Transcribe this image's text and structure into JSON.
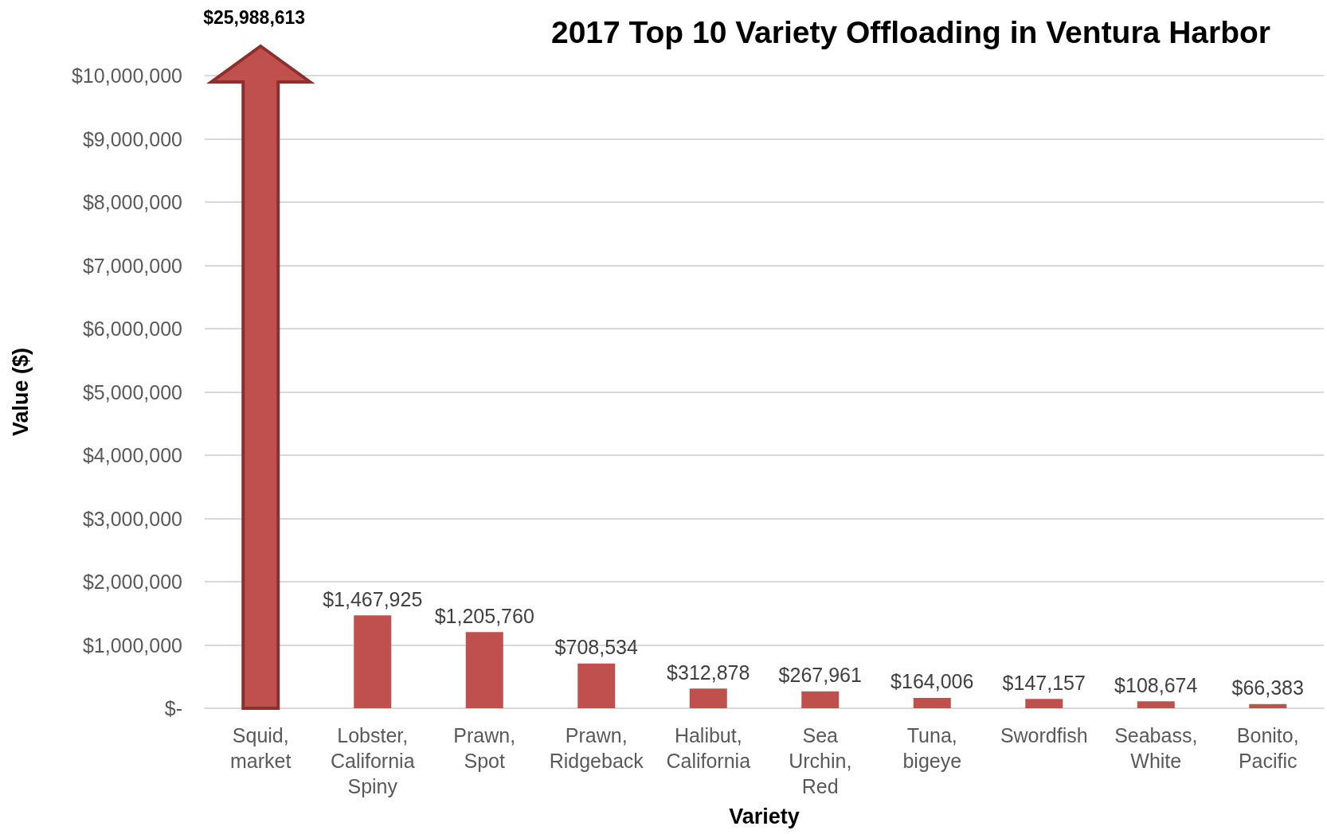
{
  "chart_data": {
    "type": "bar",
    "title": "2017 Top 10 Variety Offloading in Ventura Harbor",
    "xlabel": "Variety",
    "ylabel": "Value ($)",
    "categories": [
      "Squid, market",
      "Lobster, California Spiny",
      "Prawn, Spot",
      "Prawn, Ridgeback",
      "Halibut, California",
      "Sea Urchin, Red",
      "Tuna, bigeye",
      "Swordfish",
      "Seabass, White",
      "Bonito, Pacific"
    ],
    "annotations": [
      "$25,988,613"
    ],
    "values": [
      null,
      1467925,
      1205760,
      708534,
      312878,
      267961,
      164006,
      147157,
      108674,
      66383
    ],
    "value_labels": [
      null,
      "$1,467,925",
      "$1,205,760",
      "$708,534",
      "$312,878",
      "$267,961",
      "$164,006",
      "$147,157",
      "$108,674",
      "$66,383"
    ],
    "color": "#c0504d",
    "ylim": [
      0,
      10000000
    ],
    "yticks": [
      {
        "value": 0,
        "label": "$-"
      },
      {
        "value": 1000000,
        "label": "$1,000,000"
      },
      {
        "value": 2000000,
        "label": "$2,000,000"
      },
      {
        "value": 3000000,
        "label": "$3,000,000"
      },
      {
        "value": 4000000,
        "label": "$4,000,000"
      },
      {
        "value": 5000000,
        "label": "$5,000,000"
      },
      {
        "value": 6000000,
        "label": "$6,000,000"
      },
      {
        "value": 7000000,
        "label": "$7,000,000"
      },
      {
        "value": 8000000,
        "label": "$8,000,000"
      },
      {
        "value": 9000000,
        "label": "$9,000,000"
      },
      {
        "value": 10000000,
        "label": "$10,000,000"
      }
    ],
    "grid": "y"
  }
}
